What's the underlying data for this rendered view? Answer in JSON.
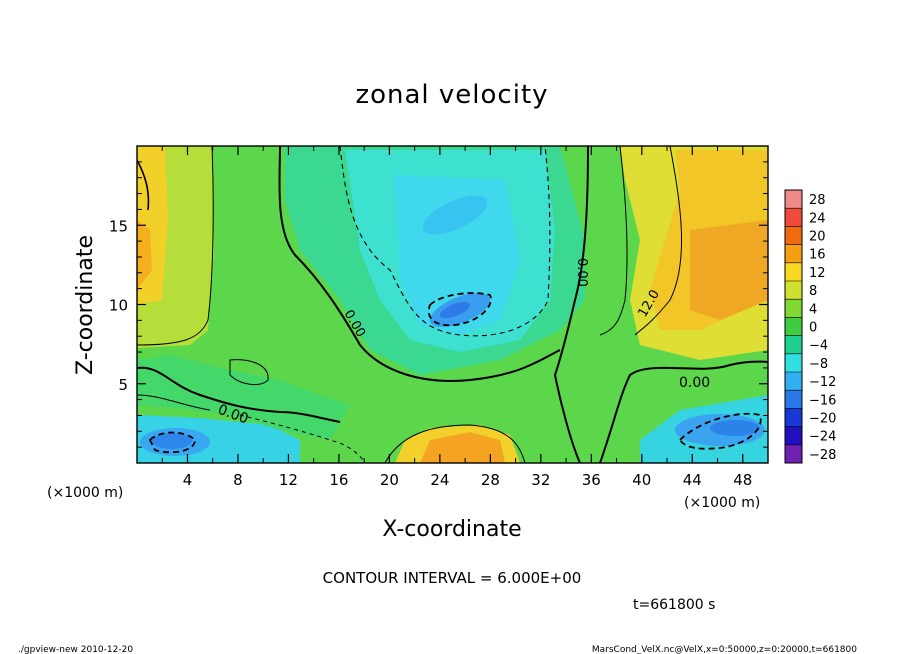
{
  "chart_data": {
    "type": "heatmap",
    "title": "zonal velocity",
    "xlabel": "X-coordinate",
    "ylabel": "Z-coordinate",
    "x_unit": "(×1000 m)",
    "xlim": [
      0,
      50
    ],
    "ylim": [
      0,
      20
    ],
    "x_ticks": [
      4,
      8,
      12,
      16,
      20,
      24,
      28,
      32,
      36,
      40,
      44,
      48
    ],
    "y_ticks": [
      5,
      10,
      15
    ],
    "colorbar": {
      "levels": [
        28,
        24,
        20,
        16,
        12,
        8,
        4,
        0,
        -4,
        -8,
        -12,
        -16,
        -20,
        -24,
        -28
      ],
      "colors": {
        "28": "#f08a8a",
        "24": "#f04a3a",
        "20": "#f06a10",
        "16": "#f4a010",
        "12": "#f8d820",
        "8": "#d0e030",
        "4": "#80d830",
        "0": "#40cc40",
        "-4": "#20d090",
        "-8": "#30e0e0",
        "-12": "#30b0f0",
        "-16": "#2878e8",
        "-20": "#1838d8",
        "-24": "#2010c0",
        "-28": "#7020b0"
      }
    },
    "contour_labels": [
      {
        "text": "0.00",
        "x": 16.8,
        "z": 9.0
      },
      {
        "text": "0.00",
        "x": 35.5,
        "z": 11.5
      },
      {
        "text": "12.0",
        "x": 41.8,
        "z": 10.3
      },
      {
        "text": "0.00",
        "x": 44.3,
        "z": 5.1
      },
      {
        "text": "0.00",
        "x": 8.0,
        "z": 3.5
      }
    ],
    "contour_interval": "CONTOUR INTERVAL = 6.000E+00",
    "time_label": "t=661800 s",
    "footer_left": "./gpview-new  2010-12-20",
    "footer_right": "MarsCond_VelX.nc@VelX,x=0:50000,z=0:20000,t=661800"
  }
}
